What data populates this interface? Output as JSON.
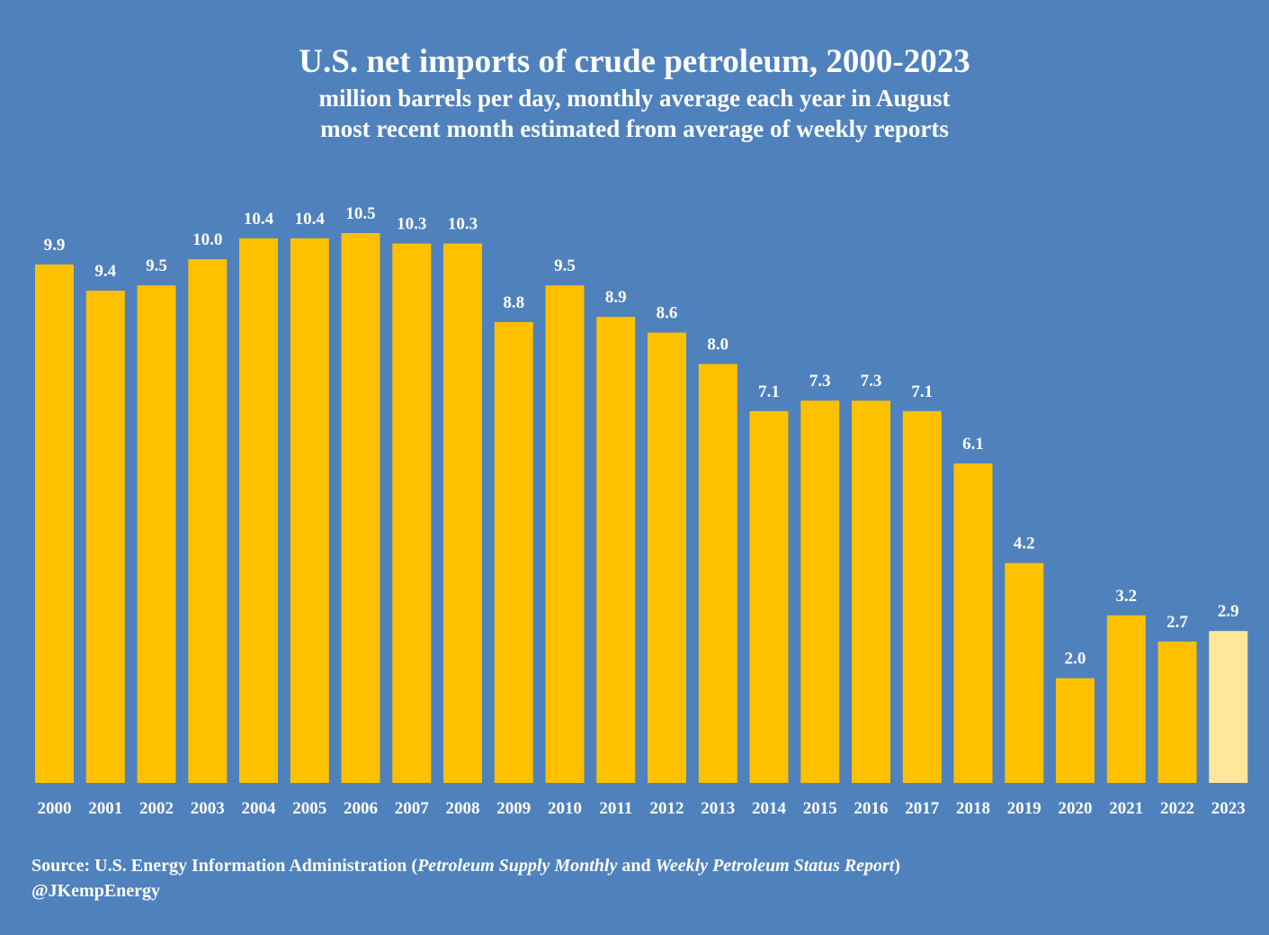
{
  "chart_data": {
    "type": "bar",
    "title": "U.S. net imports of crude petroleum, 2000-2023",
    "subtitle_lines": [
      "million barrels per day, monthly average each year in August",
      "most recent month estimated from average of weekly reports"
    ],
    "xlabel": "",
    "ylabel": "",
    "ylim": [
      0,
      10.5
    ],
    "grid": false,
    "legend": "none",
    "categories": [
      "2000",
      "2001",
      "2002",
      "2003",
      "2004",
      "2005",
      "2006",
      "2007",
      "2008",
      "2009",
      "2010",
      "2011",
      "2012",
      "2013",
      "2014",
      "2015",
      "2016",
      "2017",
      "2018",
      "2019",
      "2020",
      "2021",
      "2022",
      "2023"
    ],
    "values": [
      9.9,
      9.4,
      9.5,
      10.0,
      10.4,
      10.4,
      10.5,
      10.3,
      10.3,
      8.8,
      9.5,
      8.9,
      8.6,
      8.0,
      7.1,
      7.3,
      7.3,
      7.1,
      6.1,
      4.2,
      2.0,
      3.2,
      2.7,
      2.9
    ],
    "data_labels": [
      "9.9",
      "9.4",
      "9.5",
      "10.0",
      "10.4",
      "10.4",
      "10.5",
      "10.3",
      "10.3",
      "8.8",
      "9.5",
      "8.9",
      "8.6",
      "8.0",
      "7.1",
      "7.3",
      "7.3",
      "7.1",
      "6.1",
      "4.2",
      "2.0",
      "3.2",
      "2.7",
      "2.9"
    ],
    "estimated": [
      false,
      false,
      false,
      false,
      false,
      false,
      false,
      false,
      false,
      false,
      false,
      false,
      false,
      false,
      false,
      false,
      false,
      false,
      false,
      false,
      false,
      false,
      false,
      true
    ],
    "colors": {
      "background": "#4F81BD",
      "bar": "#FFC000",
      "bar_estimated": "#FFE699",
      "text": "#FFFFFF"
    }
  },
  "footer": {
    "source_prefix": "Source: U.S. Energy Information Administration (",
    "source_pub1": "Petroleum Supply Monthly",
    "source_mid": " and ",
    "source_pub2": "Weekly Petroleum Status Report",
    "source_suffix": ")",
    "handle": "@JKempEnergy"
  }
}
